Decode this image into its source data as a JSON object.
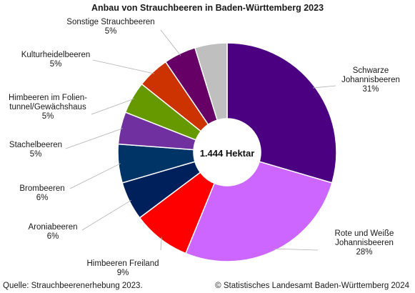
{
  "chart_data": {
    "type": "pie",
    "title": "Anbau von Strauchbeeren in Baden-Württemberg 2023",
    "center_label": "1.444 Hektar",
    "slices": [
      {
        "lines": [
          "Schwarze",
          "Johannisbeeren"
        ],
        "percent_label": "31%",
        "value": 31,
        "color": "#4b0082"
      },
      {
        "lines": [
          "Rote und Weiße",
          "Johannisbeeren"
        ],
        "percent_label": "28%",
        "value": 28,
        "color": "#cc66ff"
      },
      {
        "lines": [
          "Himbeeren Freiland"
        ],
        "percent_label": "9%",
        "value": 9,
        "color": "#ff0000"
      },
      {
        "lines": [
          "Aroniabeeren"
        ],
        "percent_label": "6%",
        "value": 6,
        "color": "#00205b"
      },
      {
        "lines": [
          "Brombeeren"
        ],
        "percent_label": "6%",
        "value": 6,
        "color": "#003366"
      },
      {
        "lines": [
          "Stachelbeeren"
        ],
        "percent_label": "5%",
        "value": 5,
        "color": "#7030a0"
      },
      {
        "lines": [
          "Himbeeren im Folien-",
          "tunnel/Gewächshaus"
        ],
        "percent_label": "5%",
        "value": 5,
        "color": "#669900"
      },
      {
        "lines": [
          "Kulturheidelbeeren"
        ],
        "percent_label": "5%",
        "value": 5,
        "color": "#cc3300"
      },
      {
        "lines": [
          "Sonstige Strauchbeeren"
        ],
        "percent_label": "5%",
        "value": 5,
        "color": "#660066"
      },
      {
        "lines": [],
        "percent_label": "",
        "value": 5,
        "color": "#bfbfbf"
      }
    ]
  },
  "footer": {
    "source": "Quelle: Strauchbeerenerhebung 2023.",
    "copyright": "© Statistisches Landesamt Baden-Württemberg 2024"
  }
}
